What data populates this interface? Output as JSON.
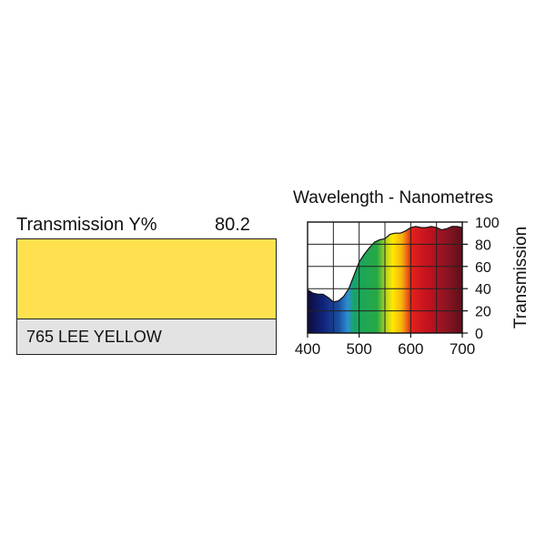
{
  "filter": {
    "transmission_label": "Transmission Y%",
    "transmission_value": "80.2",
    "name": "765 LEE YELLOW",
    "swatch_color": "#ffe14f"
  },
  "chart_data": {
    "type": "area",
    "title": "Wavelength - Nanometres",
    "xlabel": "",
    "ylabel": "Transmission",
    "xlim": [
      400,
      700
    ],
    "ylim": [
      0,
      100
    ],
    "x_ticks": [
      400,
      500,
      600,
      700
    ],
    "y_ticks": [
      0,
      20,
      40,
      60,
      80,
      100
    ],
    "grid": true,
    "x": [
      400,
      410,
      420,
      430,
      440,
      450,
      460,
      470,
      480,
      490,
      500,
      510,
      520,
      530,
      540,
      550,
      560,
      570,
      580,
      590,
      600,
      610,
      620,
      630,
      640,
      650,
      660,
      670,
      680,
      690,
      700
    ],
    "series": [
      {
        "values": [
          39,
          36,
          35,
          35,
          32,
          28,
          29,
          33,
          40,
          52,
          64,
          71,
          77,
          82,
          84,
          85,
          89,
          90,
          90,
          92,
          95,
          96,
          95,
          95,
          96,
          95,
          93,
          94,
          96,
          96,
          95
        ]
      }
    ]
  }
}
